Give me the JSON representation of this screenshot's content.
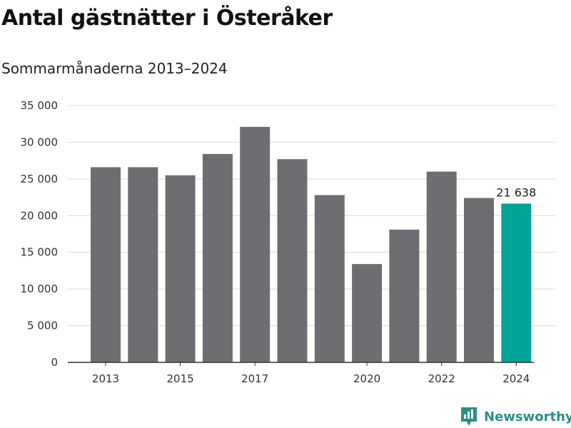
{
  "header": {
    "title": "Antal gästnätter i Österåker",
    "subtitle": "Sommarmånaderna 2013–2024"
  },
  "brand": {
    "name": "Newsworthy",
    "icon": "newsworthy-logo-icon",
    "color": "#2a8f8a"
  },
  "chart_data": {
    "type": "bar",
    "title": "Antal gästnätter i Österåker",
    "subtitle": "Sommarmånaderna 2013–2024",
    "xlabel": "",
    "ylabel": "",
    "categories": [
      "2013",
      "2014",
      "2015",
      "2016",
      "2017",
      "2018",
      "2019",
      "2020",
      "2021",
      "2022",
      "2023",
      "2024"
    ],
    "x_tick_labels": [
      "2013",
      "2015",
      "2017",
      "2020",
      "2022",
      "2024"
    ],
    "values": [
      26600,
      26600,
      25500,
      28400,
      32100,
      27700,
      22800,
      13400,
      18100,
      26000,
      22400,
      21638
    ],
    "highlight": {
      "category": "2024",
      "label": "21 638"
    },
    "ylim": [
      0,
      35000
    ],
    "y_ticks": [
      0,
      5000,
      10000,
      15000,
      20000,
      25000,
      30000,
      35000
    ],
    "y_tick_labels": [
      "0",
      "5 000",
      "10 000",
      "15 000",
      "20 000",
      "25 000",
      "30 000",
      "35 000"
    ],
    "grid": true,
    "legend": "none",
    "colors": {
      "bar": "#6e6d72",
      "highlight": "#00a398",
      "grid": "#d9d9d9",
      "axis": "#333333"
    }
  }
}
